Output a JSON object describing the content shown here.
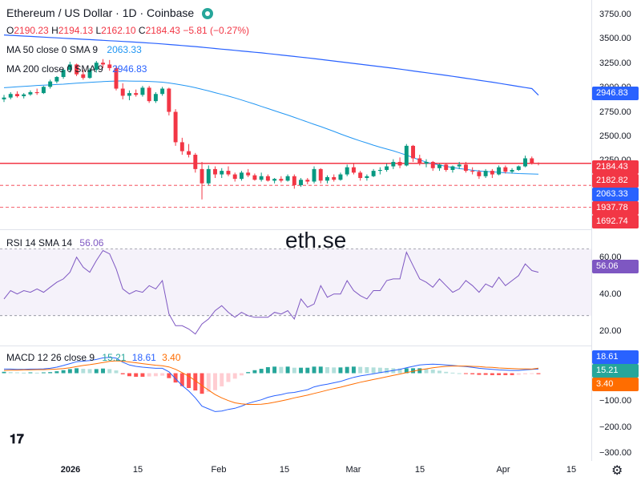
{
  "header": {
    "title": "Ethereum / US Dollar · 1D · Coinbase",
    "o_label": "O",
    "o_value": "2190.23",
    "h_label": "H",
    "h_value": "2194.13",
    "l_label": "L",
    "l_value": "2162.10",
    "c_label": "C",
    "c_value": "2184.43",
    "change": "−5.81 (−0.27%)"
  },
  "indicators": {
    "ma50_label": "MA 50 close 0 SMA 9",
    "ma50_value": "2063.33",
    "ma200_label": "MA 200 close 0 SMA 9",
    "ma200_value": "2946.83",
    "rsi_label": "RSI 14 SMA 14",
    "rsi_value": "56.06",
    "macd_label": "MACD 12 26 close 9",
    "macd_v1": "15.21",
    "macd_v2": "18.61",
    "macd_v3": "3.40"
  },
  "watermark": "eth.se",
  "price_axis": {
    "ticks": [
      "3750.00",
      "3500.00",
      "3250.00",
      "3000.00",
      "2750.00",
      "2500.00",
      "2250.00"
    ],
    "tags": [
      {
        "value": "2946.83",
        "color": "#2962ff"
      },
      {
        "value": "2184.43",
        "color": "#f23645"
      },
      {
        "value": "2182.82",
        "color": "#f23645"
      },
      {
        "value": "2063.33",
        "color": "#2962ff"
      },
      {
        "value": "1937.78",
        "color": "#f23645"
      },
      {
        "value": "1692.74",
        "color": "#f23645"
      }
    ]
  },
  "rsi_axis": {
    "ticks": [
      "60.00",
      "40.00",
      "20.00"
    ],
    "tag": "56.06",
    "tag_color": "#7e57c2"
  },
  "macd_axis": {
    "ticks": [
      "−100.00",
      "−200.00",
      "−300.00"
    ],
    "tags": [
      {
        "value": "18.61",
        "color": "#2962ff"
      },
      {
        "value": "15.21",
        "color": "#26a69a"
      },
      {
        "value": "3.40",
        "color": "#ff6d00"
      }
    ]
  },
  "time_axis": [
    "2026",
    "15",
    "Feb",
    "15",
    "Mar",
    "15",
    "Apr",
    "15"
  ],
  "colors": {
    "up": "#089981",
    "down": "#f23645",
    "ma50": "#2196f3",
    "ma200": "#2962ff",
    "rsi": "#7e57c2",
    "macd": "#2962ff",
    "signal": "#ff6d00"
  },
  "chart_data": {
    "type": "candlestick",
    "interval": "1D",
    "price_ylim": [
      1500,
      3850
    ],
    "rsi_ylim": [
      15,
      75
    ],
    "macd_ylim": [
      -320,
      60
    ],
    "horizontal_levels": [
      2184.43,
      1937.78,
      1692.74
    ],
    "candles": [
      [
        2900,
        2950,
        2870,
        2920
      ],
      [
        2920,
        2980,
        2900,
        2960
      ],
      [
        2960,
        2990,
        2920,
        2935
      ],
      [
        2935,
        2970,
        2910,
        2955
      ],
      [
        2955,
        3000,
        2940,
        2980
      ],
      [
        2980,
        3020,
        2950,
        2970
      ],
      [
        2970,
        3050,
        2960,
        3040
      ],
      [
        3040,
        3120,
        3020,
        3100
      ],
      [
        3100,
        3160,
        3080,
        3150
      ],
      [
        3150,
        3250,
        3130,
        3230
      ],
      [
        3230,
        3320,
        3200,
        3290
      ],
      [
        3290,
        3300,
        3160,
        3180
      ],
      [
        3180,
        3230,
        3120,
        3140
      ],
      [
        3140,
        3250,
        3130,
        3230
      ],
      [
        3230,
        3330,
        3200,
        3310
      ],
      [
        3310,
        3350,
        3250,
        3290
      ],
      [
        3290,
        3340,
        3220,
        3250
      ],
      [
        3250,
        3280,
        3000,
        3020
      ],
      [
        3020,
        3080,
        2900,
        2940
      ],
      [
        2940,
        3000,
        2890,
        2970
      ],
      [
        2970,
        3010,
        2930,
        2950
      ],
      [
        2950,
        3050,
        2930,
        3030
      ],
      [
        3030,
        3050,
        2860,
        2880
      ],
      [
        2880,
        2980,
        2860,
        2960
      ],
      [
        2960,
        3040,
        2940,
        3020
      ],
      [
        3020,
        3030,
        2720,
        2760
      ],
      [
        2760,
        2790,
        2380,
        2420
      ],
      [
        2420,
        2470,
        2280,
        2320
      ],
      [
        2320,
        2400,
        2250,
        2280
      ],
      [
        2280,
        2300,
        2080,
        2120
      ],
      [
        2120,
        2200,
        1780,
        1960
      ],
      [
        1960,
        2160,
        1940,
        2120
      ],
      [
        2120,
        2150,
        2020,
        2060
      ],
      [
        2060,
        2130,
        2020,
        2100
      ],
      [
        2100,
        2150,
        2040,
        2060
      ],
      [
        2060,
        2080,
        1980,
        2010
      ],
      [
        2010,
        2100,
        1990,
        2080
      ],
      [
        2080,
        2120,
        2030,
        2050
      ],
      [
        2050,
        2070,
        1990,
        2000
      ],
      [
        2000,
        2080,
        1980,
        2040
      ],
      [
        2040,
        2060,
        1980,
        1990
      ],
      [
        1990,
        2020,
        1960,
        2010
      ],
      [
        2010,
        2040,
        1970,
        1990
      ],
      [
        1990,
        2060,
        1980,
        2040
      ],
      [
        2040,
        2060,
        1900,
        1940
      ],
      [
        1940,
        2020,
        1920,
        2000
      ],
      [
        2000,
        2020,
        1950,
        1980
      ],
      [
        1980,
        2150,
        1960,
        2120
      ],
      [
        2120,
        2130,
        1960,
        1990
      ],
      [
        1990,
        2050,
        1960,
        2030
      ],
      [
        2030,
        2060,
        1980,
        2000
      ],
      [
        2000,
        2080,
        1990,
        2060
      ],
      [
        2060,
        2170,
        2040,
        2140
      ],
      [
        2140,
        2180,
        2060,
        2080
      ],
      [
        2080,
        2100,
        1990,
        2020
      ],
      [
        2020,
        2060,
        1990,
        2040
      ],
      [
        2040,
        2120,
        2030,
        2100
      ],
      [
        2100,
        2140,
        2060,
        2110
      ],
      [
        2110,
        2180,
        2090,
        2150
      ],
      [
        2150,
        2230,
        2120,
        2200
      ],
      [
        2200,
        2250,
        2130,
        2160
      ],
      [
        2160,
        2400,
        2150,
        2380
      ],
      [
        2380,
        2390,
        2200,
        2240
      ],
      [
        2240,
        2280,
        2160,
        2180
      ],
      [
        2180,
        2230,
        2140,
        2200
      ],
      [
        2200,
        2210,
        2100,
        2130
      ],
      [
        2130,
        2180,
        2100,
        2170
      ],
      [
        2170,
        2190,
        2090,
        2110
      ],
      [
        2110,
        2160,
        2080,
        2150
      ],
      [
        2150,
        2200,
        2120,
        2170
      ],
      [
        2170,
        2200,
        2080,
        2100
      ],
      [
        2100,
        2140,
        2060,
        2090
      ],
      [
        2090,
        2110,
        2010,
        2040
      ],
      [
        2040,
        2120,
        2020,
        2100
      ],
      [
        2100,
        2120,
        2020,
        2060
      ],
      [
        2060,
        2160,
        2050,
        2140
      ],
      [
        2140,
        2160,
        2070,
        2090
      ],
      [
        2090,
        2130,
        2070,
        2110
      ],
      [
        2110,
        2160,
        2100,
        2150
      ],
      [
        2150,
        2270,
        2140,
        2240
      ],
      [
        2240,
        2260,
        2170,
        2190
      ],
      [
        2190,
        2194,
        2162,
        2184
      ]
    ],
    "rsi": [
      40,
      45,
      43,
      45,
      44,
      46,
      44,
      47,
      50,
      52,
      56,
      65,
      59,
      56,
      63,
      69,
      67,
      58,
      46,
      43,
      45,
      44,
      48,
      46,
      51,
      31,
      24,
      24,
      22,
      19,
      25,
      28,
      33,
      36,
      32,
      29,
      32,
      30,
      29,
      29,
      29,
      32,
      31,
      33,
      28,
      40,
      35,
      37,
      48,
      41,
      43,
      43,
      51,
      45,
      42,
      40,
      45,
      45,
      51,
      52,
      52,
      68,
      60,
      52,
      50,
      47,
      52,
      48,
      44,
      46,
      51,
      48,
      44,
      49,
      47,
      53,
      48,
      51,
      54,
      61,
      57,
      56
    ],
    "macd": [
      15,
      15,
      14,
      14,
      15,
      15,
      16,
      18,
      22,
      28,
      35,
      42,
      44,
      46,
      50,
      56,
      58,
      55,
      40,
      30,
      25,
      22,
      20,
      18,
      18,
      5,
      -20,
      -45,
      -65,
      -90,
      -120,
      -130,
      -140,
      -138,
      -132,
      -128,
      -120,
      -110,
      -103,
      -97,
      -88,
      -82,
      -78,
      -72,
      -70,
      -65,
      -60,
      -50,
      -44,
      -40,
      -35,
      -30,
      -22,
      -15,
      -10,
      -6,
      -2,
      2,
      6,
      10,
      14,
      20,
      25,
      30,
      32,
      33,
      32,
      30,
      28,
      26,
      24,
      21,
      18,
      16,
      14,
      12,
      11,
      10,
      10,
      12,
      14,
      15.21
    ],
    "signal": [
      10,
      11,
      11,
      12,
      12,
      13,
      13,
      14,
      15,
      17,
      20,
      24,
      28,
      31,
      35,
      39,
      43,
      45,
      44,
      41,
      38,
      35,
      32,
      29,
      27,
      23,
      14,
      2,
      -11,
      -27,
      -45,
      -62,
      -78,
      -90,
      -100,
      -108,
      -112,
      -114,
      -114,
      -113,
      -110,
      -106,
      -101,
      -96,
      -90,
      -85,
      -80,
      -74,
      -68,
      -62,
      -56,
      -51,
      -45,
      -39,
      -33,
      -28,
      -23,
      -18,
      -13,
      -8,
      -3,
      2,
      7,
      12,
      16,
      20,
      23,
      25,
      26,
      26,
      26,
      25,
      24,
      22,
      21,
      19,
      18,
      17,
      16,
      16,
      15,
      18.61
    ],
    "ma50": [
      3030,
      3035,
      3040,
      3045,
      3050,
      3055,
      3058,
      3062,
      3066,
      3070,
      3075,
      3080,
      3085,
      3090,
      3094,
      3098,
      3102,
      3105,
      3106,
      3105,
      3104,
      3103,
      3100,
      3097,
      3092,
      3083,
      3072,
      3060,
      3046,
      3030,
      3012,
      2994,
      2975,
      2956,
      2936,
      2915,
      2893,
      2870,
      2846,
      2821,
      2797,
      2773,
      2748,
      2724,
      2698,
      2672,
      2646,
      2620,
      2595,
      2568,
      2541,
      2513,
      2486,
      2460,
      2435,
      2411,
      2387,
      2365,
      2344,
      2324,
      2300,
      2276,
      2248,
      2222,
      2198,
      2180,
      2165,
      2150,
      2137,
      2126,
      2116,
      2106,
      2099,
      2093,
      2088,
      2084,
      2078,
      2074,
      2070,
      2067,
      2065,
      2063.33
    ],
    "ma200": [
      3620,
      3616,
      3612,
      3608,
      3604,
      3600,
      3596,
      3592,
      3588,
      3584,
      3580,
      3576,
      3572,
      3568,
      3564,
      3560,
      3556,
      3552,
      3548,
      3544,
      3540,
      3535,
      3530,
      3525,
      3520,
      3514,
      3508,
      3502,
      3496,
      3490,
      3483,
      3476,
      3469,
      3462,
      3455,
      3448,
      3441,
      3434,
      3427,
      3420,
      3412,
      3404,
      3396,
      3388,
      3380,
      3372,
      3364,
      3356,
      3347,
      3338,
      3329,
      3320,
      3311,
      3302,
      3293,
      3284,
      3275,
      3266,
      3257,
      3248,
      3238,
      3228,
      3218,
      3208,
      3198,
      3188,
      3178,
      3168,
      3158,
      3147,
      3136,
      3125,
      3114,
      3103,
      3092,
      3080,
      3068,
      3056,
      3044,
      3032,
      3020,
      2946.83
    ]
  }
}
